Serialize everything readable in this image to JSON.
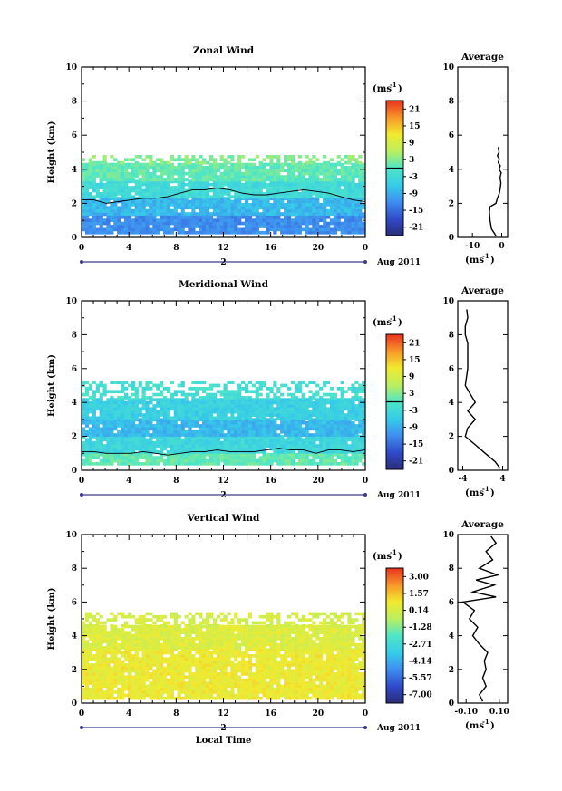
{
  "chart_data": [
    {
      "type": "heatmap",
      "title": "Zonal Wind",
      "xlabel": "",
      "ylabel": "Height (km)",
      "xlim": [
        0,
        24
      ],
      "ylim": [
        0,
        10
      ],
      "x_ticks": [
        "0",
        "4",
        "8",
        "12",
        "16",
        "20",
        "0"
      ],
      "y_ticks": [
        "0",
        "2",
        "4",
        "6",
        "8",
        "10"
      ],
      "date_day": "2",
      "date_label": "Aug 2011",
      "colorbar": {
        "unit_base": "(ms",
        "unit_exp": "-1",
        "unit_close": ")",
        "ticks": [
          "21",
          "15",
          "9",
          "3",
          "-3",
          "-9",
          "-15",
          "-21"
        ],
        "range": [
          -24,
          24
        ]
      },
      "contour_zero_km": [
        2.2,
        2.2,
        2.0,
        2.1,
        2.2,
        2.3,
        2.3,
        2.4,
        2.6,
        2.8,
        2.8,
        2.9,
        2.8,
        2.6,
        2.5,
        2.5,
        2.6,
        2.7,
        2.8,
        2.7,
        2.6,
        2.4,
        2.2,
        2.1
      ],
      "bands": [
        {
          "bottom_km": 0.2,
          "top_km": 1.3,
          "value": -12
        },
        {
          "bottom_km": 1.3,
          "top_km": 2.3,
          "value": -8
        },
        {
          "bottom_km": 2.3,
          "top_km": 3.3,
          "value": -3
        },
        {
          "bottom_km": 3.3,
          "top_km": 4.3,
          "value": 1
        },
        {
          "bottom_km": 4.3,
          "top_km": 4.8,
          "value": 3
        }
      ],
      "average_profile": {
        "title": "Average",
        "xlabel_base": "(ms",
        "xlabel_exp": "-1",
        "xlabel_close": ")",
        "x_ticks": [
          "-10",
          "0"
        ],
        "xlim": [
          -15,
          2
        ],
        "height_km": [
          0.1,
          0.5,
          1.0,
          1.5,
          1.8,
          2.0,
          2.3,
          2.6,
          2.9,
          3.2,
          3.5,
          3.8,
          4.0,
          4.2,
          4.4,
          4.6,
          4.8,
          5.0,
          5.3
        ],
        "value": [
          -2.0,
          -3.5,
          -4.0,
          -4.2,
          -4.0,
          -2.0,
          -1.5,
          -0.8,
          -0.5,
          -0.3,
          -0.6,
          -0.2,
          -0.9,
          -0.5,
          -1.2,
          -0.8,
          -1.5,
          -0.9,
          -1.2
        ]
      }
    },
    {
      "type": "heatmap",
      "title": "Meridional Wind",
      "xlabel": "",
      "ylabel": "Height (km)",
      "xlim": [
        0,
        24
      ],
      "ylim": [
        0,
        10
      ],
      "x_ticks": [
        "0",
        "4",
        "8",
        "12",
        "16",
        "20",
        "0"
      ],
      "y_ticks": [
        "0",
        "2",
        "4",
        "6",
        "8",
        "10"
      ],
      "date_day": "2",
      "date_label": "Aug 2011",
      "colorbar": {
        "unit_base": "(ms",
        "unit_exp": "-1",
        "unit_close": ")",
        "ticks": [
          "21",
          "15",
          "9",
          "3",
          "-3",
          "-9",
          "-15",
          "-21"
        ],
        "range": [
          -24,
          24
        ]
      },
      "contour_zero_km": [
        1.1,
        1.1,
        1.0,
        1.0,
        1.0,
        1.1,
        1.0,
        0.9,
        1.0,
        1.1,
        1.1,
        1.2,
        1.1,
        1.1,
        1.1,
        1.2,
        1.3,
        1.2,
        1.2,
        1.0,
        1.2,
        1.2,
        1.1,
        1.2
      ],
      "bands": [
        {
          "bottom_km": 0.3,
          "top_km": 1.0,
          "value": 1
        },
        {
          "bottom_km": 1.0,
          "top_km": 2.0,
          "value": -4
        },
        {
          "bottom_km": 2.0,
          "top_km": 3.0,
          "value": -8
        },
        {
          "bottom_km": 3.0,
          "top_km": 4.2,
          "value": -5
        },
        {
          "bottom_km": 4.2,
          "top_km": 5.2,
          "value": -2
        }
      ],
      "average_profile": {
        "title": "Average",
        "xlabel_base": "(ms",
        "xlabel_exp": "-1",
        "xlabel_close": ")",
        "x_ticks": [
          "-4",
          "4"
        ],
        "xlim": [
          -5,
          5
        ],
        "height_km": [
          0.1,
          0.5,
          1.0,
          1.5,
          2.0,
          2.5,
          3.0,
          3.5,
          4.0,
          4.5,
          5.0,
          6.0,
          7.5,
          8.0,
          8.5,
          9.0,
          9.5
        ],
        "value": [
          3.5,
          2.5,
          0.5,
          -1.5,
          -3.5,
          -3.0,
          -1.5,
          -3.0,
          -1.5,
          -2.5,
          -3.5,
          -3.0,
          -3.0,
          -3.5,
          -3.5,
          -3.0,
          -3.2
        ]
      }
    },
    {
      "type": "heatmap",
      "title": "Vertical Wind",
      "xlabel": "Local Time",
      "ylabel": "Height (km)",
      "xlim": [
        0,
        24
      ],
      "ylim": [
        0,
        10
      ],
      "x_ticks": [
        "0",
        "4",
        "8",
        "12",
        "16",
        "20",
        "0"
      ],
      "y_ticks": [
        "0",
        "2",
        "4",
        "6",
        "8",
        "10"
      ],
      "date_day": "2",
      "date_label": "Aug 2011",
      "colorbar": {
        "unit_base": "(ms",
        "unit_exp": "-1",
        "unit_close": ")",
        "ticks": [
          "3.00",
          "1.57",
          "0.14",
          "-1.28",
          "-2.71",
          "-4.14",
          "-5.57",
          "-7.00"
        ],
        "range": [
          -7.7,
          3.7
        ]
      },
      "bands": [
        {
          "bottom_km": 0.2,
          "top_km": 3.2,
          "value": 0.7
        },
        {
          "bottom_km": 3.2,
          "top_km": 4.5,
          "value": 0.3
        },
        {
          "bottom_km": 4.5,
          "top_km": 5.3,
          "value": 0.1
        }
      ],
      "average_profile": {
        "title": "Average",
        "xlabel_base": "(ms",
        "xlabel_exp": "-1",
        "xlabel_close": ")",
        "x_ticks": [
          "-0.10",
          "0.10"
        ],
        "xlim": [
          -0.15,
          0.15
        ],
        "height_km": [
          0.1,
          0.5,
          1.0,
          1.5,
          2.0,
          2.5,
          3.0,
          3.5,
          4.0,
          4.5,
          5.0,
          5.5,
          6.0,
          6.3,
          6.6,
          7.0,
          7.3,
          7.6,
          8.0,
          8.5,
          9.0,
          9.5,
          9.9
        ],
        "value": [
          0.0,
          -0.02,
          0.02,
          0.0,
          0.02,
          0.01,
          0.03,
          -0.02,
          -0.06,
          -0.03,
          -0.08,
          -0.05,
          -0.12,
          0.08,
          -0.06,
          0.07,
          -0.04,
          0.09,
          -0.02,
          0.06,
          0.02,
          0.08,
          0.05
        ]
      }
    }
  ]
}
